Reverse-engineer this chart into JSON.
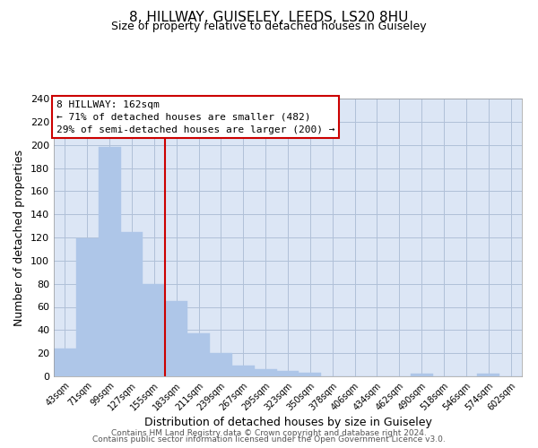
{
  "title": "8, HILLWAY, GUISELEY, LEEDS, LS20 8HU",
  "subtitle": "Size of property relative to detached houses in Guiseley",
  "xlabel": "Distribution of detached houses by size in Guiseley",
  "ylabel": "Number of detached properties",
  "bar_labels": [
    "43sqm",
    "71sqm",
    "99sqm",
    "127sqm",
    "155sqm",
    "183sqm",
    "211sqm",
    "239sqm",
    "267sqm",
    "295sqm",
    "323sqm",
    "350sqm",
    "378sqm",
    "406sqm",
    "434sqm",
    "462sqm",
    "490sqm",
    "518sqm",
    "546sqm",
    "574sqm",
    "602sqm"
  ],
  "bar_values": [
    24,
    119,
    198,
    125,
    80,
    65,
    37,
    20,
    9,
    6,
    5,
    3,
    0,
    0,
    0,
    0,
    2,
    0,
    0,
    2,
    0
  ],
  "bar_color": "#aec6e8",
  "bar_edge_color": "#aec6e8",
  "ylim": [
    0,
    240
  ],
  "yticks": [
    0,
    20,
    40,
    60,
    80,
    100,
    120,
    140,
    160,
    180,
    200,
    220,
    240
  ],
  "vline_color": "#cc0000",
  "annotation_title": "8 HILLWAY: 162sqm",
  "annotation_line1": "← 71% of detached houses are smaller (482)",
  "annotation_line2": "29% of semi-detached houses are larger (200) →",
  "annotation_box_color": "#ffffff",
  "annotation_box_edge": "#cc0000",
  "footer_line1": "Contains HM Land Registry data © Crown copyright and database right 2024.",
  "footer_line2": "Contains public sector information licensed under the Open Government Licence v3.0.",
  "background_color": "#ffffff",
  "plot_bg_color": "#dce6f5",
  "grid_color": "#b0c0d8"
}
